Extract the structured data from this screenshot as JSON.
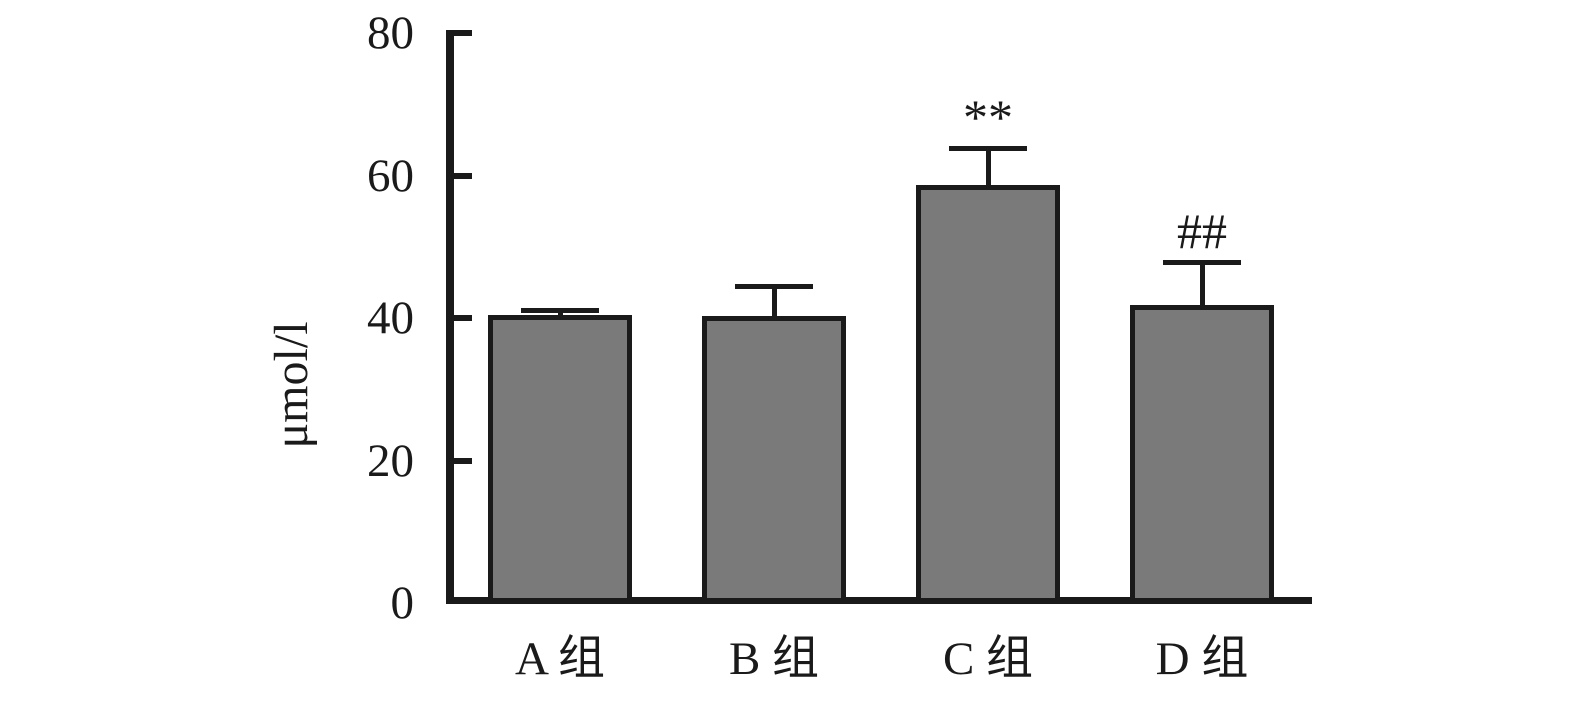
{
  "chart_data": {
    "type": "bar",
    "title": "",
    "xlabel": "",
    "ylabel": "μmol/l",
    "categories": [
      "A 组",
      "B 组",
      "C 组",
      "D 组"
    ],
    "values": [
      40.4,
      40.3,
      58.7,
      41.8
    ],
    "errors": [
      1.0,
      4.5,
      5.4,
      6.3
    ],
    "annotations": [
      "",
      "",
      "**",
      "##"
    ],
    "ylim": [
      0,
      80
    ],
    "yticks": [
      0,
      20,
      40,
      60,
      80
    ],
    "grid": false,
    "legend": "none",
    "bar_color": "#7a7a7a",
    "bar_border_color": "#1a1a1a",
    "axis_color": "#1a1a1a",
    "background_color": "#ffffff"
  }
}
